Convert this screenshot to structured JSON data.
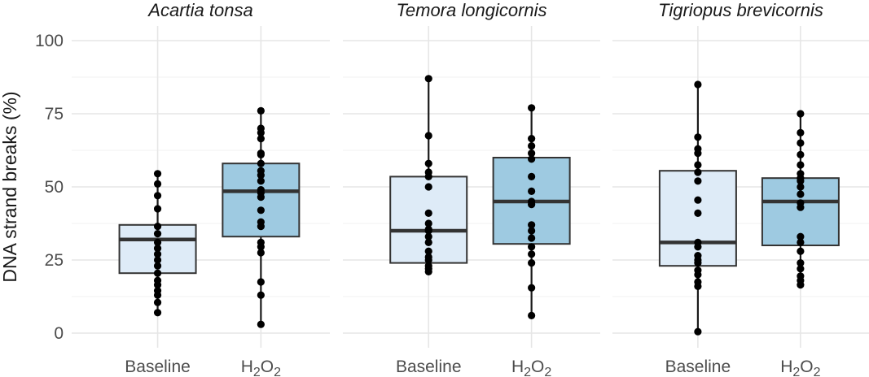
{
  "chart_data": {
    "type": "box",
    "ylabel": "DNA strand breaks (%)",
    "ylim": [
      0,
      100
    ],
    "yticks": [
      0,
      25,
      50,
      75,
      100
    ],
    "categories": [
      "Baseline",
      "H2O2"
    ],
    "category_labels": [
      {
        "base": "Baseline",
        "sub1": "",
        "mid": "",
        "sub2": ""
      },
      {
        "base": "H",
        "sub1": "2",
        "mid": "O",
        "sub2": "2"
      }
    ],
    "colors": {
      "Baseline": "#deebf7",
      "H2O2": "#9ecae1"
    },
    "grid": true,
    "legend": "none",
    "facets": [
      {
        "title": "Acartia tonsa",
        "groups": [
          {
            "category": "Baseline",
            "q1": 20.5,
            "median": 32,
            "q3": 37,
            "whisker_low": 7,
            "whisker_high": 54.5,
            "points": [
              54.5,
              51,
              47,
              42.5,
              36.5,
              34,
              31,
              29,
              27,
              25,
              23,
              20.5,
              18,
              16.5,
              14.5,
              13,
              10.5,
              7
            ]
          },
          {
            "category": "H2O2",
            "q1": 33,
            "median": 48.5,
            "q3": 58,
            "whisker_low": 3,
            "whisker_high": 76,
            "points": [
              76,
              70,
              68.5,
              66.5,
              61.5,
              61,
              58,
              55.5,
              54,
              52,
              49,
              48,
              46.5,
              42,
              38,
              36.5,
              31,
              29.5,
              27.5,
              17.5,
              13,
              3
            ]
          }
        ]
      },
      {
        "title": "Temora longicornis",
        "groups": [
          {
            "category": "Baseline",
            "q1": 24,
            "median": 35,
            "q3": 53.5,
            "whisker_low": 21,
            "whisker_high": 87,
            "points": [
              87,
              67.5,
              58,
              55,
              53.5,
              50,
              41,
              37.5,
              35.5,
              35,
              33,
              31,
              28,
              26,
              25,
              23,
              22,
              21
            ]
          },
          {
            "category": "H2O2",
            "q1": 30.5,
            "median": 45,
            "q3": 60,
            "whisker_low": 6,
            "whisker_high": 77,
            "points": [
              77,
              66.5,
              64,
              61.5,
              59.5,
              53.5,
              48.5,
              45,
              44,
              37,
              35,
              32.5,
              29.5,
              27,
              24,
              15.5,
              6
            ]
          }
        ]
      },
      {
        "title": "Tigriopus brevicornis",
        "groups": [
          {
            "category": "Baseline",
            "q1": 23,
            "median": 31,
            "q3": 55.5,
            "whisker_low": 0.5,
            "whisker_high": 85,
            "points": [
              85,
              67,
              63,
              61.5,
              57.5,
              55,
              52,
              45.5,
              41,
              31,
              29.5,
              26.5,
              25,
              24,
              21.5,
              20,
              17.5,
              16,
              0.5
            ]
          },
          {
            "category": "H2O2",
            "q1": 30,
            "median": 45,
            "q3": 53,
            "whisker_low": 16.5,
            "whisker_high": 75,
            "points": [
              75,
              68.5,
              65,
              61,
              57.5,
              54.5,
              53,
              52,
              50,
              47.5,
              44.5,
              43,
              33,
              31,
              28,
              24,
              22,
              19.5,
              18,
              16.5
            ]
          }
        ]
      }
    ]
  }
}
